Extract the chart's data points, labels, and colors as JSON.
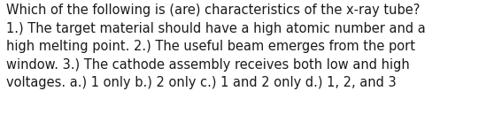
{
  "background_color": "#ffffff",
  "text_color": "#1a1a1a",
  "font_size": 10.5,
  "fig_width": 5.58,
  "fig_height": 1.46,
  "dpi": 100,
  "line1": "Which of the following is (are) characteristics of the x-ray tube?",
  "line2": "1.) The target material should have a high atomic number and a",
  "line3": "high melting point. 2.) The useful beam emerges from the port",
  "line4": "window. 3.) The cathode assembly receives both low and high",
  "line5": "voltages. a.) 1 only b.) 2 only c.) 1 and 2 only d.) 1, 2, and 3"
}
